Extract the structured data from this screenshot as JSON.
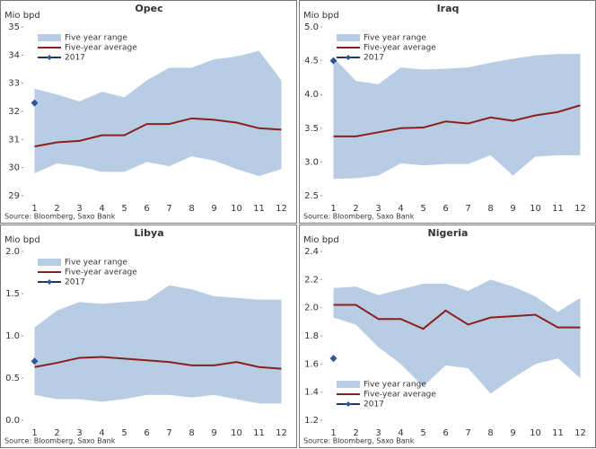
{
  "chart_data": [
    {
      "type": "line",
      "title": "Opec",
      "y_label": "Mio bpd",
      "source": "Source: Bloomberg, Saxo Bank",
      "legend": "upper left",
      "categories": [
        1,
        2,
        3,
        4,
        5,
        6,
        7,
        8,
        9,
        10,
        11,
        12
      ],
      "ylim": [
        29,
        35
      ],
      "yticks": [
        29,
        30,
        31,
        32,
        33,
        34,
        35
      ],
      "series": [
        {
          "name": "Five year range",
          "type": "range",
          "color": "#b8cce4",
          "low": [
            29.8,
            30.15,
            30.05,
            29.85,
            29.85,
            30.2,
            30.05,
            30.4,
            30.25,
            29.95,
            29.7,
            29.95
          ],
          "high": [
            32.8,
            32.6,
            32.35,
            32.7,
            32.5,
            33.1,
            33.55,
            33.55,
            33.85,
            33.95,
            34.15,
            33.1
          ]
        },
        {
          "name": "Five-year average",
          "type": "line",
          "color": "#8b1f1f",
          "values": [
            30.75,
            30.9,
            30.95,
            31.15,
            31.15,
            31.55,
            31.55,
            31.75,
            31.7,
            31.6,
            31.4,
            31.35
          ]
        },
        {
          "name": "2017",
          "type": "marker",
          "color": "#2f5597",
          "values": [
            32.3,
            null,
            null,
            null,
            null,
            null,
            null,
            null,
            null,
            null,
            null,
            null
          ]
        }
      ]
    },
    {
      "type": "line",
      "title": "Iraq",
      "y_label": "Mio bpd",
      "source": "Source: Bloomberg, Saxo Bank",
      "legend": "upper left",
      "categories": [
        1,
        2,
        3,
        4,
        5,
        6,
        7,
        8,
        9,
        10,
        11,
        12
      ],
      "ylim": [
        2.5,
        5.0
      ],
      "yticks": [
        2.5,
        {
          "value": 3,
          "label": "3.0"
        },
        3.5,
        {
          "value": 4,
          "label": "4.0"
        },
        4.5,
        {
          "value": 5,
          "label": "5.0"
        }
      ],
      "series": [
        {
          "name": "Five year range",
          "type": "range",
          "color": "#b8cce4",
          "low": [
            2.75,
            2.76,
            2.8,
            2.98,
            2.95,
            2.97,
            2.97,
            3.1,
            2.8,
            3.08,
            3.1,
            3.1
          ],
          "high": [
            4.55,
            4.2,
            4.15,
            4.4,
            4.37,
            4.38,
            4.4,
            4.47,
            4.53,
            4.58,
            4.6,
            4.6
          ]
        },
        {
          "name": "Five-year average",
          "type": "line",
          "color": "#8b1f1f",
          "values": [
            3.38,
            3.38,
            3.44,
            3.5,
            3.51,
            3.6,
            3.57,
            3.66,
            3.61,
            3.69,
            3.74,
            3.84
          ]
        },
        {
          "name": "2017",
          "type": "marker",
          "color": "#2f5597",
          "values": [
            4.5,
            null,
            null,
            null,
            null,
            null,
            null,
            null,
            null,
            null,
            null,
            null
          ]
        }
      ]
    },
    {
      "type": "line",
      "title": "Libya",
      "y_label": "Mio bpd",
      "source": "Source: Bloomberg, Saxo Bank",
      "legend": "upper left",
      "categories": [
        1,
        2,
        3,
        4,
        5,
        6,
        7,
        8,
        9,
        10,
        11,
        12
      ],
      "ylim": [
        0,
        2
      ],
      "yticks": [
        {
          "value": 0,
          "label": "0.0"
        },
        0.5,
        {
          "value": 1,
          "label": "1.0"
        },
        1.5,
        {
          "value": 2,
          "label": "2.0"
        }
      ],
      "series": [
        {
          "name": "Five year range",
          "type": "range",
          "color": "#b8cce4",
          "low": [
            0.3,
            0.25,
            0.25,
            0.22,
            0.25,
            0.3,
            0.3,
            0.27,
            0.3,
            0.25,
            0.2,
            0.2
          ],
          "high": [
            1.1,
            1.3,
            1.4,
            1.38,
            1.4,
            1.42,
            1.6,
            1.55,
            1.47,
            1.45,
            1.43,
            1.43
          ]
        },
        {
          "name": "Five-year average",
          "type": "line",
          "color": "#8b1f1f",
          "values": [
            0.63,
            0.68,
            0.74,
            0.75,
            0.73,
            0.71,
            0.69,
            0.65,
            0.65,
            0.69,
            0.63,
            0.61
          ]
        },
        {
          "name": "2017",
          "type": "marker",
          "color": "#2f5597",
          "values": [
            0.7,
            null,
            null,
            null,
            null,
            null,
            null,
            null,
            null,
            null,
            null,
            null
          ]
        }
      ]
    },
    {
      "type": "line",
      "title": "Nigeria",
      "y_label": "Mio bpd",
      "source": "Source: Bloomberg, Saxo Bank",
      "legend": "lower left",
      "categories": [
        1,
        2,
        3,
        4,
        5,
        6,
        7,
        8,
        9,
        10,
        11,
        12
      ],
      "ylim": [
        1.2,
        2.4
      ],
      "yticks": [
        1.2,
        1.4,
        1.6,
        1.8,
        {
          "value": 2,
          "label": "2.0"
        },
        2.2,
        2.4
      ],
      "series": [
        {
          "name": "Five year range",
          "type": "range",
          "color": "#b8cce4",
          "low": [
            1.93,
            1.88,
            1.72,
            1.6,
            1.44,
            1.59,
            1.57,
            1.39,
            1.5,
            1.6,
            1.64,
            1.5
          ],
          "high": [
            2.14,
            2.15,
            2.09,
            2.13,
            2.17,
            2.17,
            2.12,
            2.2,
            2.15,
            2.08,
            1.97,
            2.07
          ]
        },
        {
          "name": "Five-year average",
          "type": "line",
          "color": "#8b1f1f",
          "values": [
            2.02,
            2.02,
            1.92,
            1.92,
            1.85,
            1.98,
            1.88,
            1.93,
            1.94,
            1.95,
            1.86,
            1.86
          ]
        },
        {
          "name": "2017",
          "type": "marker",
          "color": "#2f5597",
          "values": [
            1.64,
            null,
            null,
            null,
            null,
            null,
            null,
            null,
            null,
            null,
            null,
            null
          ]
        }
      ]
    }
  ]
}
